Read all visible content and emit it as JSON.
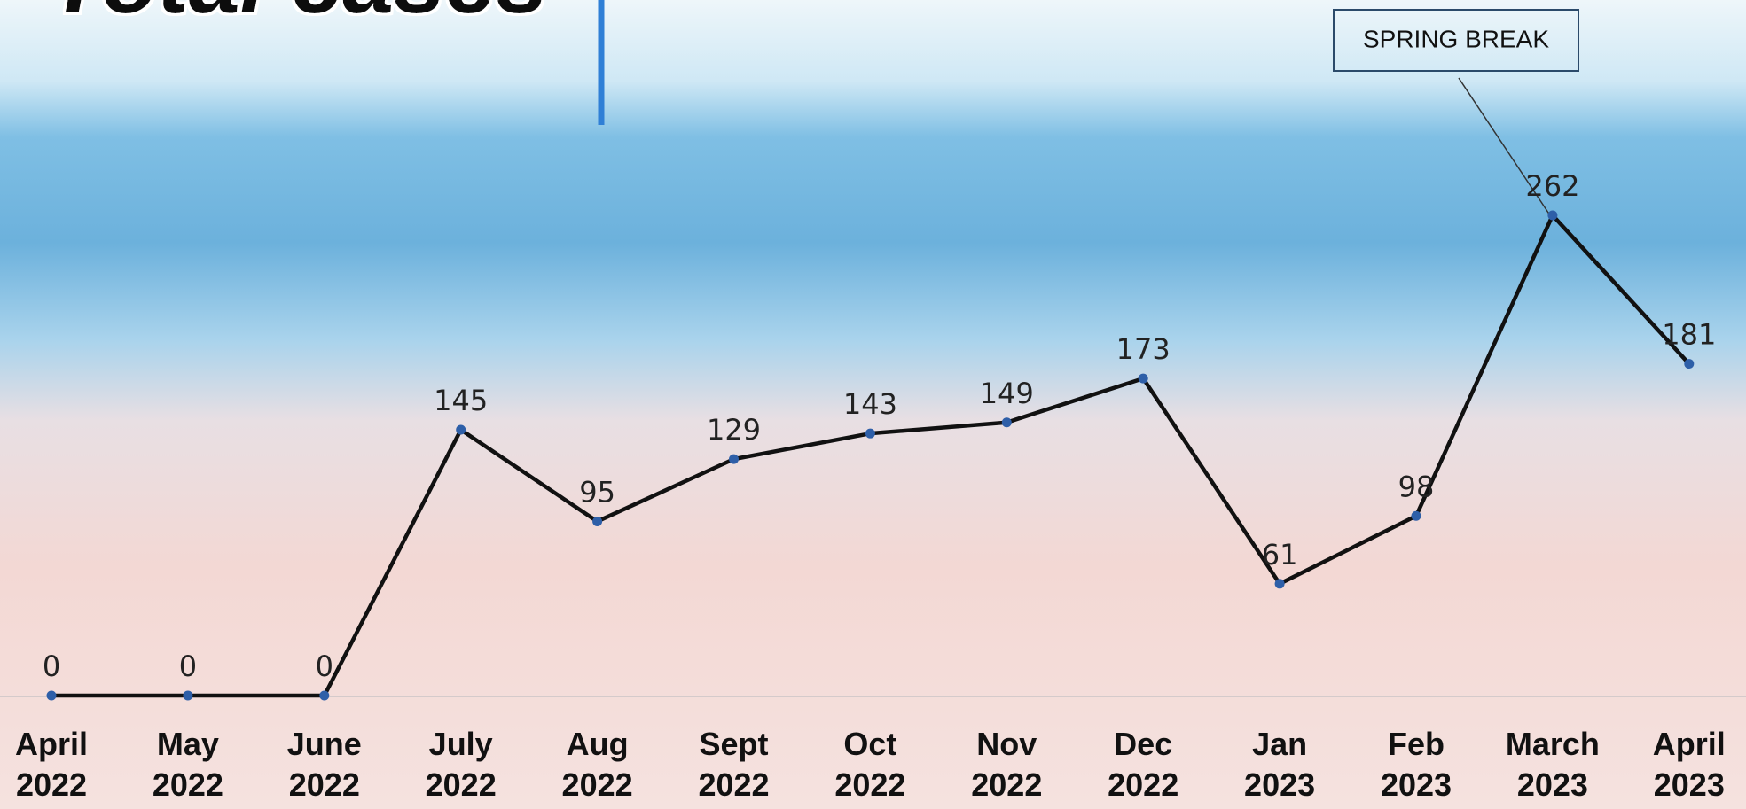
{
  "chart_data": {
    "type": "line",
    "title": "Total cases",
    "categories": [
      "April 2022",
      "May 2022",
      "June 2022",
      "July 2022",
      "Aug 2022",
      "Sept 2022",
      "Oct 2022",
      "Nov 2022",
      "Dec 2022",
      "Jan 2023",
      "Feb 2023",
      "March 2023",
      "April 2023"
    ],
    "values": [
      0,
      0,
      0,
      145,
      95,
      129,
      143,
      149,
      173,
      61,
      98,
      262,
      181
    ],
    "color": "#111111",
    "marker_color": "#2e5fa8",
    "annotation": "SPRING BREAK"
  }
}
